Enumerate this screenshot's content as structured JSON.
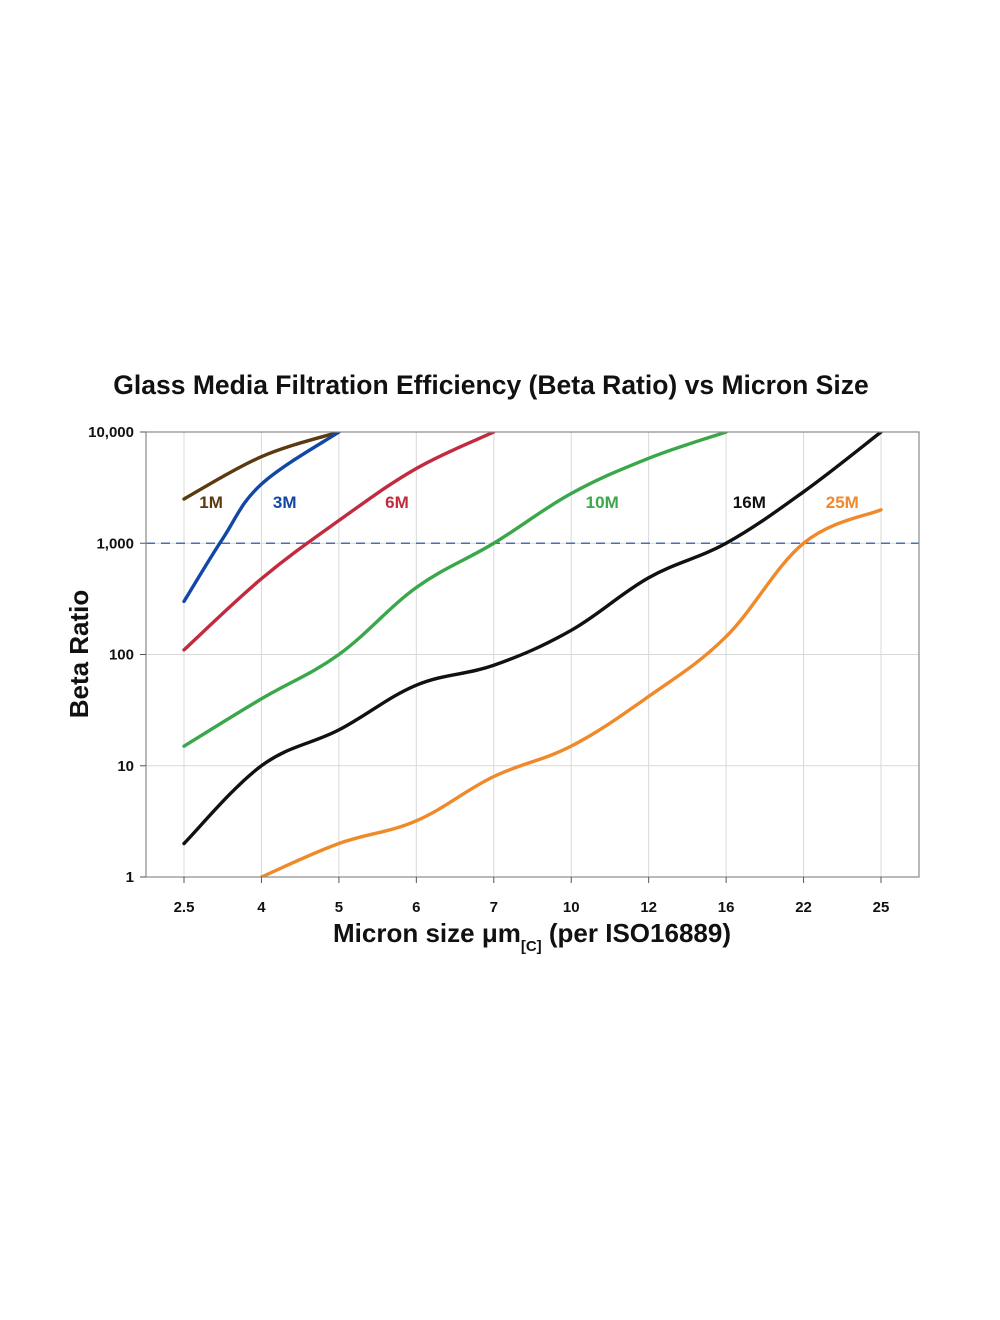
{
  "chart_data": {
    "type": "line",
    "title": "Glass Media Filtration Efficiency (Beta Ratio) vs Micron Size",
    "xlabel_main": "Micron size μm",
    "xlabel_sub": "[C]",
    "xlabel_tail": " (per ISO16889)",
    "ylabel": "Beta Ratio",
    "yscale": "log",
    "ylim": [
      1,
      10000
    ],
    "categories": [
      "2.5",
      "4",
      "5",
      "6",
      "7",
      "10",
      "12",
      "16",
      "22",
      "25"
    ],
    "y_ticks": [
      {
        "value": 1,
        "label": "1"
      },
      {
        "value": 10,
        "label": "10"
      },
      {
        "value": 100,
        "label": "100"
      },
      {
        "value": 1000,
        "label": "1,000"
      },
      {
        "value": 10000,
        "label": "10,000"
      }
    ],
    "reference_line": {
      "value": 1000,
      "style": "dashed",
      "color": "#4a6fb0"
    },
    "grid": true,
    "series": [
      {
        "name": "1M",
        "color": "#5c3a10",
        "label_at": [
          0.35,
          2350
        ],
        "points": [
          [
            0,
            2500
          ],
          [
            1,
            6000
          ],
          [
            2,
            10000
          ]
        ]
      },
      {
        "name": "3M",
        "color": "#1247a6",
        "label_at": [
          1.3,
          2350
        ],
        "points": [
          [
            0,
            300
          ],
          [
            0.5,
            1100
          ],
          [
            1,
            3400
          ],
          [
            2,
            10000
          ]
        ]
      },
      {
        "name": "6M",
        "color": "#c22a3e",
        "label_at": [
          2.75,
          2350
        ],
        "points": [
          [
            0,
            110
          ],
          [
            1,
            480
          ],
          [
            2,
            1600
          ],
          [
            3,
            4700
          ],
          [
            4,
            10000
          ]
        ]
      },
      {
        "name": "10M",
        "color": "#3aa84a",
        "label_at": [
          5.4,
          2350
        ],
        "points": [
          [
            0,
            15
          ],
          [
            1,
            40
          ],
          [
            2,
            100
          ],
          [
            3,
            400
          ],
          [
            4,
            1000
          ],
          [
            5,
            2800
          ],
          [
            6,
            5800
          ],
          [
            7,
            10000
          ]
        ]
      },
      {
        "name": "16M",
        "color": "#111111",
        "label_at": [
          7.3,
          2350
        ],
        "points": [
          [
            0,
            2
          ],
          [
            1,
            10
          ],
          [
            2,
            21
          ],
          [
            3,
            53
          ],
          [
            4,
            80
          ],
          [
            5,
            165
          ],
          [
            6,
            490
          ],
          [
            7,
            1000
          ],
          [
            8,
            2900
          ],
          [
            9,
            10000
          ]
        ]
      },
      {
        "name": "25M",
        "color": "#f0892a",
        "label_at": [
          8.5,
          2350
        ],
        "points": [
          [
            1,
            1
          ],
          [
            2,
            2
          ],
          [
            3,
            3.2
          ],
          [
            4,
            8
          ],
          [
            5,
            15
          ],
          [
            6,
            42
          ],
          [
            7,
            145
          ],
          [
            8,
            1000
          ],
          [
            9,
            2000
          ]
        ]
      }
    ]
  }
}
